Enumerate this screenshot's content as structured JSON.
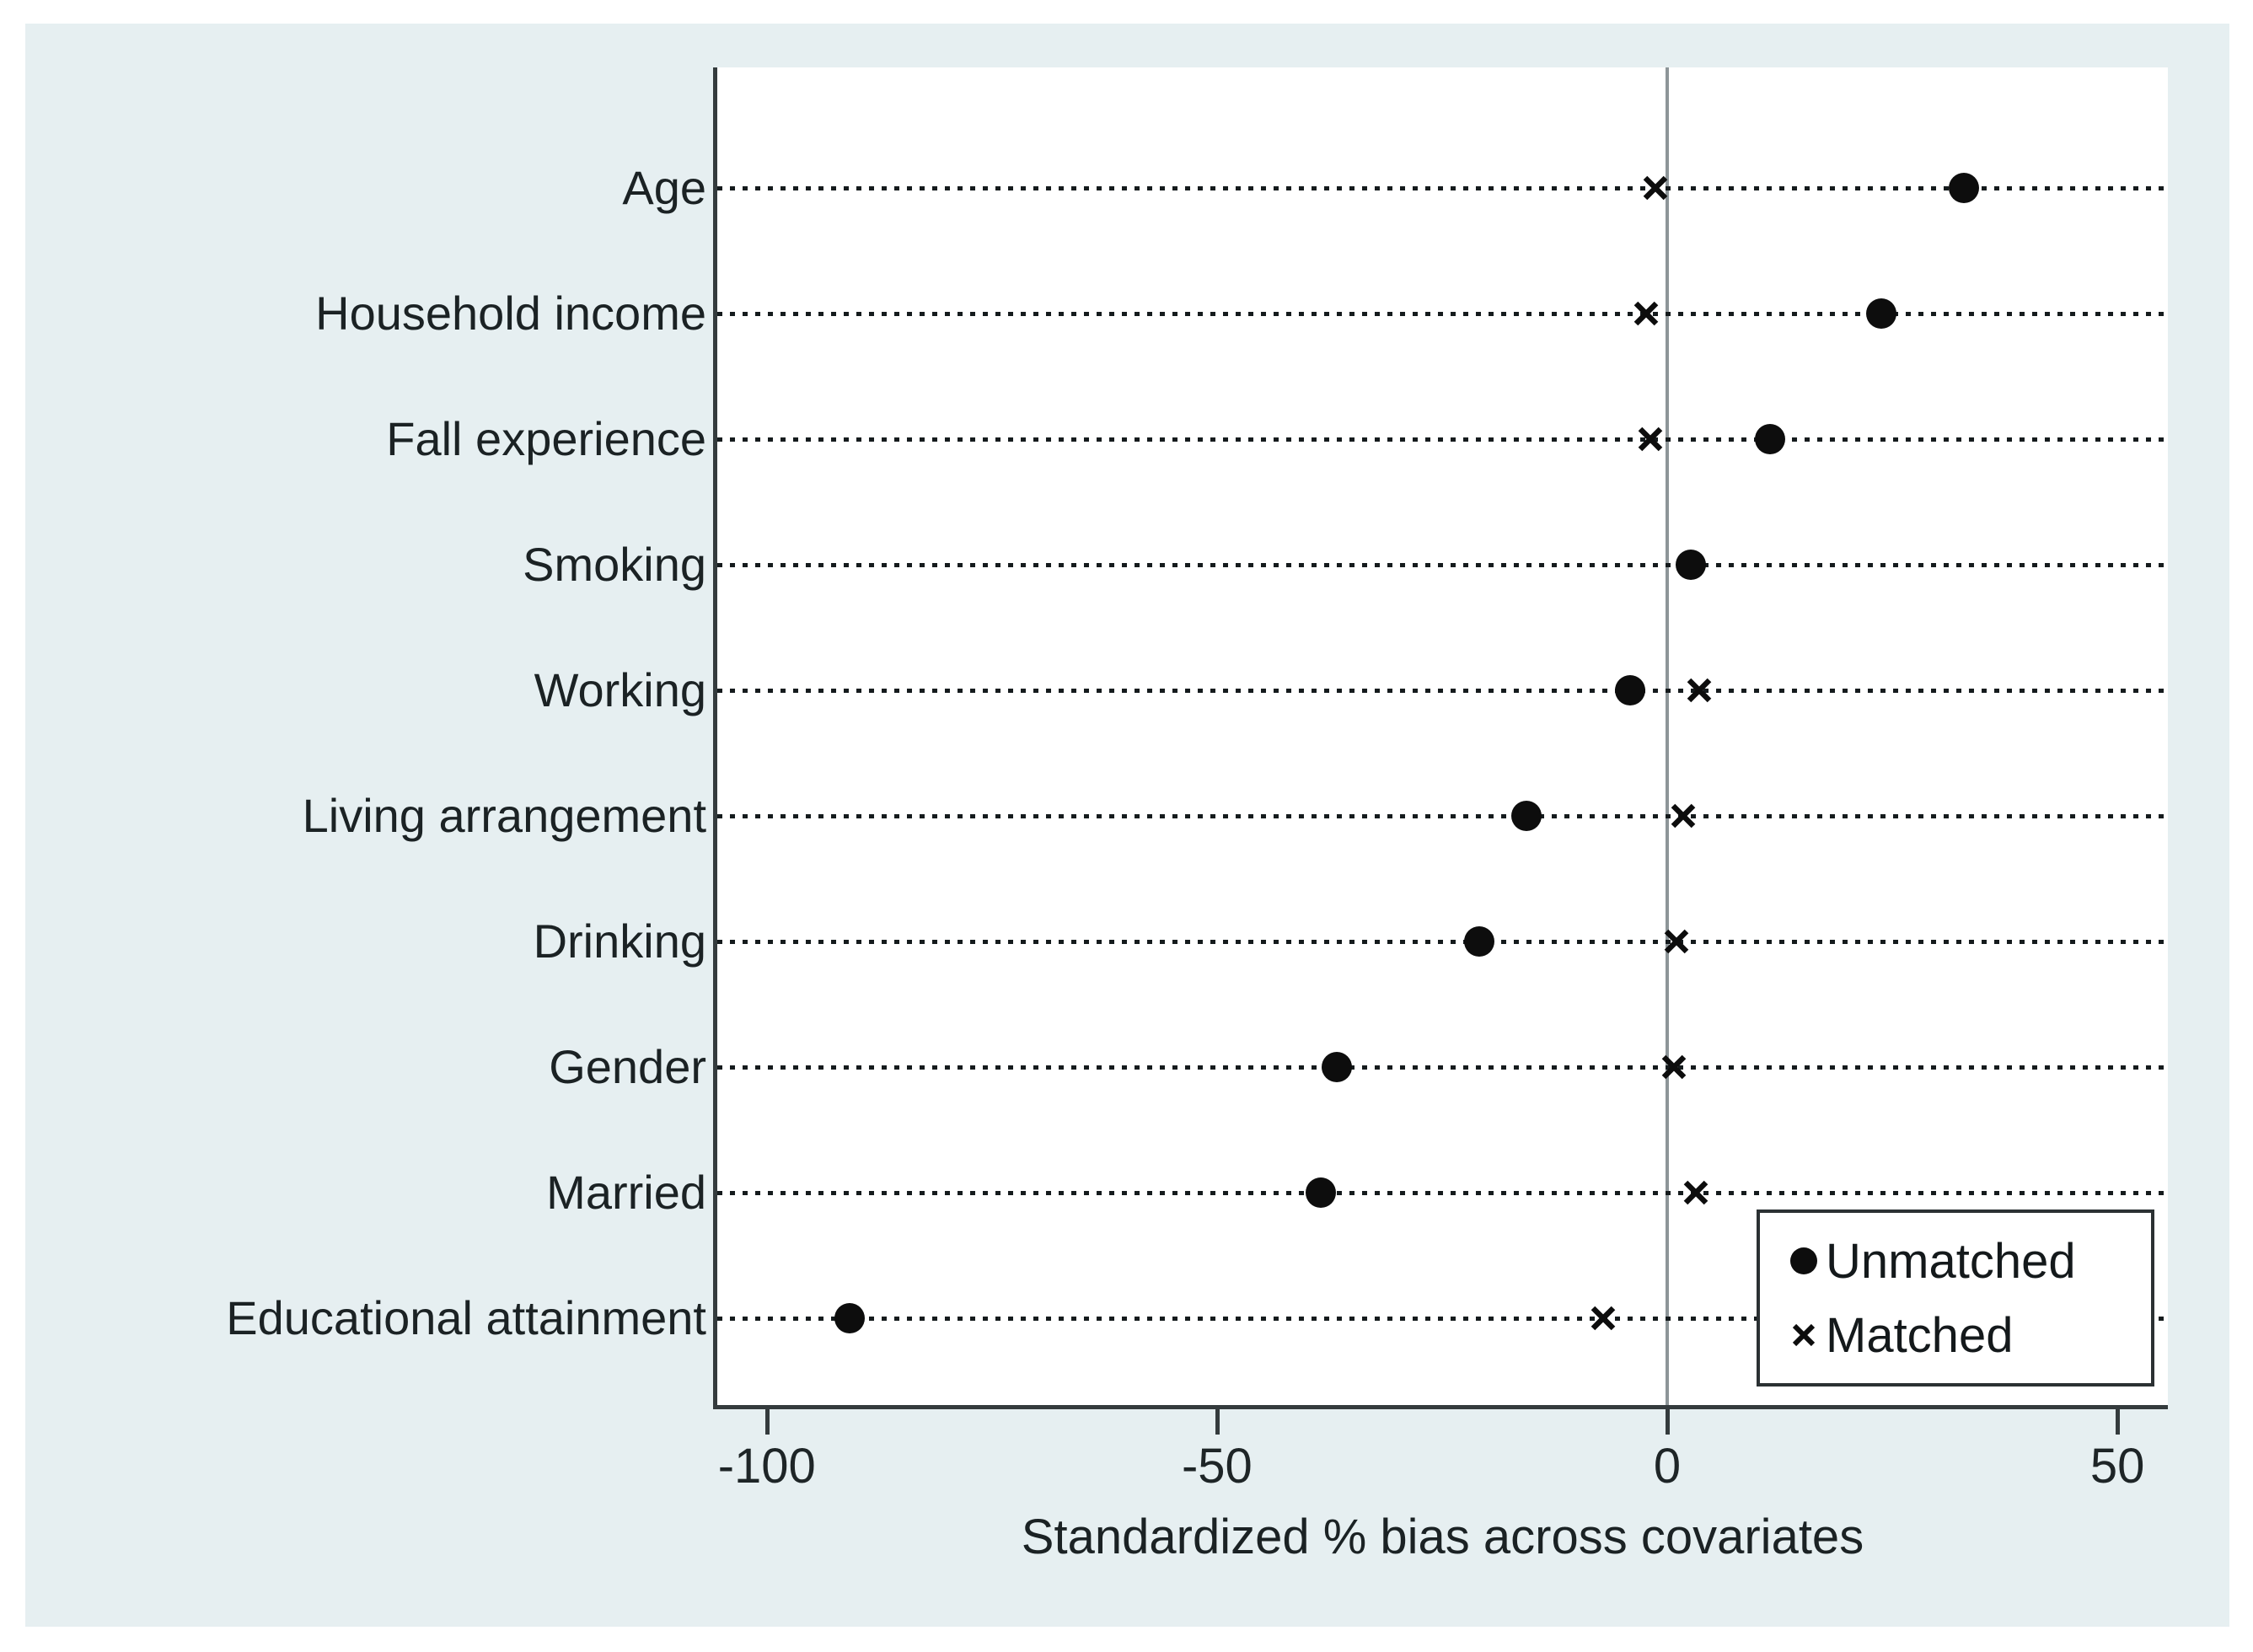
{
  "chart_data": {
    "type": "scatter",
    "subtype": "dot-plot-covariate-balance",
    "xlabel": "Standardized % bias across covariates",
    "categories": [
      "Age",
      "Household income",
      "Fall experience",
      "Smoking",
      "Working",
      "Living arrangement",
      "Drinking",
      "Gender",
      "Married",
      "Educational attainment"
    ],
    "series": [
      {
        "name": "Unmatched",
        "marker": "circle",
        "values": [
          32.9,
          23.8,
          11.4,
          2.6,
          -4.1,
          -15.6,
          -20.9,
          -36.7,
          -38.5,
          -90.8
        ]
      },
      {
        "name": "Matched",
        "marker": "x",
        "values": [
          -1.3,
          -2.3,
          -1.9,
          2.6,
          3.6,
          1.8,
          1.0,
          0.7,
          3.2,
          -7.1
        ]
      }
    ],
    "x_ticks": [
      -100,
      -50,
      0,
      50
    ],
    "x_tick_labels": [
      "-100",
      "-50",
      "0",
      "50"
    ],
    "xlim": [
      -105.5,
      55.6
    ],
    "zero_reference_line": 0,
    "grid": "dotted-horizontal-rows",
    "legend_position": "bottom-right-inside",
    "colors": {
      "figure_bg": "#e6eff1",
      "plot_bg": "#ffffff",
      "marker": "#0d0d0d",
      "axis": "#343b3d",
      "zero_line": "#8d9598",
      "dotted_line": "#151b1d",
      "text": "#1b2224"
    }
  }
}
